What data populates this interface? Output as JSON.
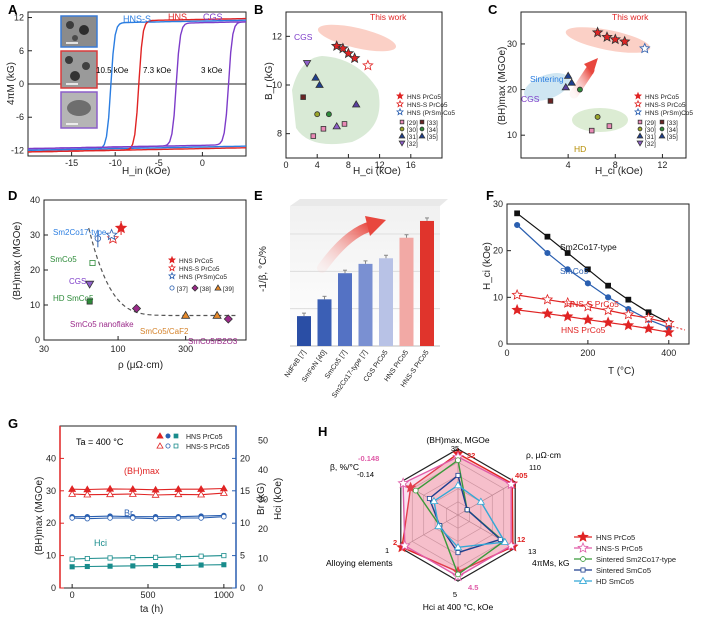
{
  "chart_data": [
    {
      "panel": "A",
      "type": "line",
      "xlabel": "H_in (kOe)",
      "ylabel": "4πM (kG)",
      "xlim": [
        -20,
        5
      ],
      "ylim": [
        -13,
        13
      ],
      "xticks": [
        "-15",
        "-10",
        "-5",
        "0"
      ],
      "yticks": [
        "-12",
        "-6",
        "0",
        "6",
        "12"
      ],
      "series": [
        {
          "name": "HNS-S",
          "color": "#2a7de1",
          "coercivity": -10.5,
          "ms": 11.6
        },
        {
          "name": "HNS",
          "color": "#e02424",
          "coercivity": -7.3,
          "ms": 11.9
        },
        {
          "name": "CGS",
          "color": "#7d3cc9",
          "coercivity": -3,
          "ms": 11.3
        }
      ],
      "annotations": [
        "10.5 kOe",
        "7.3 kOe",
        "3 kOe"
      ]
    },
    {
      "panel": "B",
      "type": "scatter",
      "xlabel": "H_ci (kOe)",
      "ylabel": "B_r (kG)",
      "xlim": [
        0,
        20
      ],
      "ylim": [
        7,
        13
      ],
      "xticks": [
        "0",
        "4",
        "8",
        "12",
        "16"
      ],
      "yticks": [
        "8",
        "10",
        "12"
      ],
      "annotations": [
        "This work",
        "CGS"
      ],
      "legend": [
        "HNS PrCo5",
        "HNS-S PrCo5",
        "HNS (PrSm)Co5",
        "[29]",
        "[30]",
        "[31]",
        "[32]",
        "[33]",
        "[34]",
        "[35]"
      ],
      "points": [
        {
          "x": 6.5,
          "y": 11.6
        },
        {
          "x": 7.3,
          "y": 11.5
        },
        {
          "x": 8.0,
          "y": 11.3
        },
        {
          "x": 8.8,
          "y": 11.1
        },
        {
          "x": 10.5,
          "y": 10.8
        },
        {
          "x": 2.7,
          "y": 10.9
        },
        {
          "x": 2.2,
          "y": 9.5
        },
        {
          "x": 3.8,
          "y": 10.3
        },
        {
          "x": 4.3,
          "y": 10.0
        },
        {
          "x": 4.0,
          "y": 8.8
        },
        {
          "x": 5.5,
          "y": 8.8
        },
        {
          "x": 4.8,
          "y": 8.2
        },
        {
          "x": 6.5,
          "y": 8.3
        },
        {
          "x": 7.5,
          "y": 8.4
        },
        {
          "x": 9.0,
          "y": 9.2
        },
        {
          "x": 3.5,
          "y": 7.9
        }
      ]
    },
    {
      "panel": "C",
      "type": "scatter",
      "xlabel": "H_ci (kOe)",
      "ylabel": "(BH)max (MGOe)",
      "xlim": [
        0,
        14
      ],
      "ylim": [
        5,
        37
      ],
      "xticks": [
        "4",
        "8",
        "12"
      ],
      "yticks": [
        "10",
        "20",
        "30"
      ],
      "annotations": [
        "This work",
        "Sintering",
        "CGS",
        "HD"
      ],
      "legend": [
        "HNS PrCo5",
        "HNS-S PrCo5",
        "HNS (PrSm)Co5",
        "[29]",
        "[30]",
        "[31]",
        "[32]",
        "[33]",
        "[34]",
        "[35]"
      ],
      "points": [
        {
          "x": 6.5,
          "y": 32.5
        },
        {
          "x": 7.3,
          "y": 31.5
        },
        {
          "x": 8.0,
          "y": 31.0
        },
        {
          "x": 8.8,
          "y": 30.5
        },
        {
          "x": 10.5,
          "y": 29.0
        },
        {
          "x": 4.0,
          "y": 23.0
        },
        {
          "x": 4.3,
          "y": 21.5
        },
        {
          "x": 5.0,
          "y": 20.0
        },
        {
          "x": 3.8,
          "y": 20.5
        },
        {
          "x": 2.5,
          "y": 17.5
        },
        {
          "x": 6.5,
          "y": 14.0
        },
        {
          "x": 6.0,
          "y": 11.0
        },
        {
          "x": 7.5,
          "y": 12.0
        }
      ]
    },
    {
      "panel": "D",
      "type": "scatter",
      "xlabel": "ρ (μΩ·cm)",
      "ylabel": "(BH)max (MGOe)",
      "xscale": "log",
      "xlim": [
        30,
        800
      ],
      "ylim": [
        0,
        40
      ],
      "xticks": [
        "30",
        "100",
        "300"
      ],
      "yticks": [
        "0",
        "10",
        "20",
        "30",
        "40"
      ],
      "labels": [
        "Sm2Co17-type",
        "SmCo5",
        "CGS",
        "HD SmCo5",
        "SmCo5 nanoflake",
        "SmCo5/CaF2",
        "SmCo5/B2O3"
      ],
      "legend": [
        "HNS PrCo5",
        "HNS-S PrCo5",
        "HNS (PrSm)Co5",
        "[37]",
        "[38]",
        "[39]"
      ],
      "points": [
        {
          "x": 105,
          "y": 32
        },
        {
          "x": 92,
          "y": 29
        },
        {
          "x": 90,
          "y": 30
        },
        {
          "x": 72,
          "y": 29
        },
        {
          "x": 66,
          "y": 22
        },
        {
          "x": 63,
          "y": 16
        },
        {
          "x": 63,
          "y": 11
        },
        {
          "x": 135,
          "y": 9
        },
        {
          "x": 300,
          "y": 7
        },
        {
          "x": 500,
          "y": 7
        },
        {
          "x": 600,
          "y": 6
        }
      ]
    },
    {
      "panel": "E",
      "type": "bar",
      "ylabel": "-1/β, °C/%",
      "categories": [
        "NdFeB [7]",
        "SmFeN [40]",
        "SmCo5 [7]",
        "Sm2Co17-type [7]",
        "CGS PrCo5",
        "HNS PrCo5",
        "HNS-S PrCo5"
      ],
      "values": [
        1.6,
        2.5,
        3.9,
        4.4,
        4.7,
        5.8,
        6.7
      ],
      "ylim": [
        0,
        7.5
      ]
    },
    {
      "panel": "F",
      "type": "line",
      "xlabel": "T (°C)",
      "ylabel": "H_ci (kOe)",
      "xlim": [
        0,
        450
      ],
      "ylim": [
        0,
        30
      ],
      "xticks": [
        "0",
        "200",
        "400"
      ],
      "yticks": [
        "0",
        "10",
        "20",
        "30"
      ],
      "x": [
        25,
        100,
        150,
        200,
        250,
        300,
        350,
        400
      ],
      "series": [
        {
          "name": "Sm2Co17-type",
          "values": [
            28.0,
            23.0,
            19.5,
            16.0,
            12.5,
            9.5,
            6.8,
            4.5
          ]
        },
        {
          "name": "SmCo5",
          "values": [
            25.5,
            19.5,
            16.0,
            13.0,
            10.0,
            7.5,
            5.2,
            3.5
          ]
        },
        {
          "name": "HNS-S PrCo5",
          "values": [
            10.5,
            9.5,
            8.8,
            8.0,
            7.2,
            6.3,
            5.5,
            4.5
          ]
        },
        {
          "name": "HNS PrCo5",
          "values": [
            7.3,
            6.5,
            5.9,
            5.2,
            4.6,
            4.0,
            3.3,
            2.5
          ]
        }
      ]
    },
    {
      "panel": "G",
      "type": "line",
      "title": "Ta = 400 °C",
      "xlabel": "ta (h)",
      "ylabel_left": "(BH)max (MGOe)",
      "ylabel_right": "Br (kG)",
      "ylabel_right2": "Hci (kOe)",
      "xlim": [
        -80,
        1080
      ],
      "xticks": [
        "0",
        "500",
        "1000"
      ],
      "yticks_left": [
        "0",
        "10",
        "20",
        "30",
        "40"
      ],
      "yticks_right": [
        "0",
        "5",
        "10",
        "15",
        "20"
      ],
      "yticks_right2": [
        "0",
        "10",
        "20",
        "30",
        "40",
        "50"
      ],
      "x": [
        0,
        100,
        250,
        400,
        550,
        700,
        850,
        1000
      ],
      "legend": [
        "HNS PrCo5",
        "HNS-S PrCo5"
      ],
      "series": [
        {
          "name": "(BH)max HNS",
          "values": [
            30.5,
            30.4,
            30.6,
            30.5,
            30.3,
            30.5,
            30.5,
            30.7
          ]
        },
        {
          "name": "(BH)max HNS-S",
          "values": [
            29.0,
            28.8,
            28.9,
            29.0,
            28.7,
            28.9,
            28.8,
            29.3
          ]
        },
        {
          "name": "Br HNS",
          "values": [
            11.0,
            11.0,
            11.1,
            11.0,
            11.0,
            11.0,
            11.1,
            11.2
          ]
        },
        {
          "name": "Br HNS-S",
          "values": [
            10.8,
            10.7,
            10.8,
            10.8,
            10.7,
            10.8,
            10.8,
            11.0
          ]
        },
        {
          "name": "Hci HNS",
          "values": [
            7.2,
            7.3,
            7.4,
            7.5,
            7.6,
            7.6,
            7.8,
            7.9
          ]
        },
        {
          "name": "Hci HNS-S",
          "values": [
            9.8,
            10.0,
            10.2,
            10.3,
            10.4,
            10.6,
            10.8,
            11.0
          ]
        }
      ],
      "labels": [
        "(BH)max",
        "Br",
        "Hci"
      ]
    },
    {
      "panel": "H",
      "type": "radar",
      "axes": [
        "(BH)max, MGOe",
        "ρ, μΩ·cm",
        "4πMs, kG",
        "Hci at 400 °C, kOe",
        "Alloying elements",
        "β, %/°C"
      ],
      "scale_labels": {
        "top": [
          "35",
          "32"
        ],
        "rho": [
          "405",
          "110"
        ],
        "ms": [
          "13",
          "12"
        ],
        "hci": [
          "5",
          "4.5"
        ],
        "alloy": [
          "1",
          "2"
        ],
        "beta": [
          "-0.148",
          "-0.14"
        ]
      },
      "legend": [
        "HNS PrCo5",
        "HNS-S PrCo5",
        "Sintered Sm2Co17-type",
        "Sintered SmCo5",
        "HD SmCo5"
      ],
      "series": [
        {
          "name": "HNS PrCo5",
          "values": [
            0.93,
            0.95,
            0.96,
            0.86,
            0.98,
            0.83
          ]
        },
        {
          "name": "HNS-S PrCo5",
          "values": [
            0.88,
            0.93,
            0.93,
            0.93,
            0.93,
            0.96
          ]
        },
        {
          "name": "Sintered Sm2Co17-type",
          "values": [
            0.83,
            0.16,
            0.8,
            0.9,
            0.32,
            0.74
          ]
        },
        {
          "name": "Sintered SmCo5",
          "values": [
            0.6,
            0.16,
            0.74,
            0.57,
            0.32,
            0.5
          ]
        },
        {
          "name": "HD SmCo5",
          "values": [
            0.45,
            0.4,
            0.82,
            0.49,
            0.34,
            0.42
          ]
        }
      ]
    }
  ]
}
